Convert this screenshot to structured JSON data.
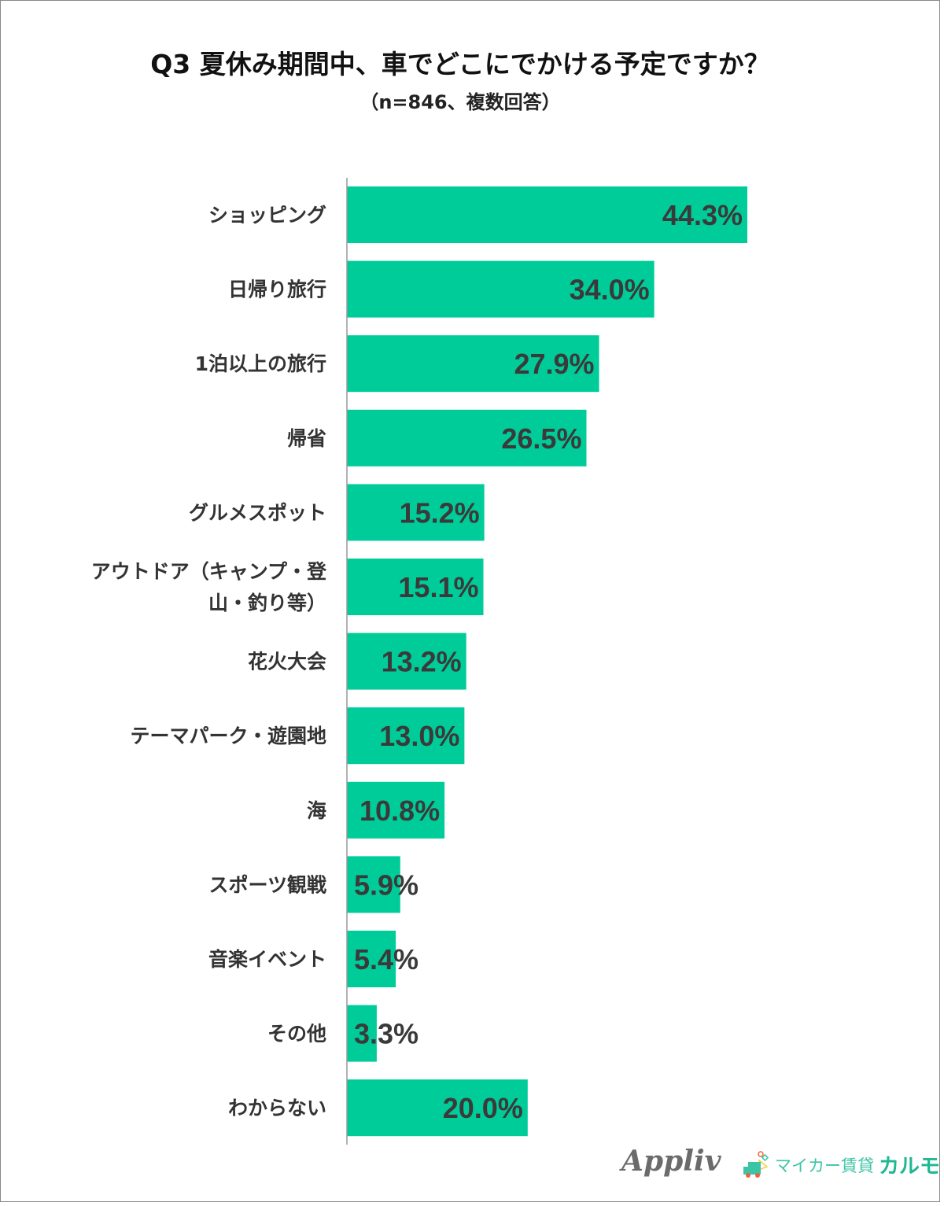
{
  "title": "Q3 夏休み期間中、車でどこにでかける予定ですか？",
  "subtitle": "（n=846、複数回答）",
  "chart_data": {
    "type": "bar",
    "orientation": "horizontal",
    "categories": [
      "ショッピング",
      "日帰り旅行",
      "1泊以上の旅行",
      "帰省",
      "グルメスポット",
      "アウトドア（キャンプ・登山・釣り等）",
      "花火大会",
      "テーマパーク・遊園地",
      "海",
      "スポーツ観戦",
      "音楽イベント",
      "その他",
      "わからない"
    ],
    "category_lines": [
      [
        "ショッピング"
      ],
      [
        "日帰り旅行"
      ],
      [
        "1泊以上の旅行"
      ],
      [
        "帰省"
      ],
      [
        "グルメスポット"
      ],
      [
        "アウトドア（キャンプ・登",
        "山・釣り等）"
      ],
      [
        "花火大会"
      ],
      [
        "テーマパーク・遊園地"
      ],
      [
        "海"
      ],
      [
        "スポーツ観戦"
      ],
      [
        "音楽イベント"
      ],
      [
        "その他"
      ],
      [
        "わからない"
      ]
    ],
    "values": [
      44.3,
      34.0,
      27.9,
      26.5,
      15.2,
      15.1,
      13.2,
      13.0,
      10.8,
      5.9,
      5.4,
      3.3,
      20.0
    ],
    "value_labels": [
      "44.3%",
      "34.0%",
      "27.9%",
      "26.5%",
      "15.2%",
      "15.1%",
      "13.2%",
      "13.0%",
      "10.8%",
      "5.9%",
      "5.4%",
      "3.3%",
      "20.0%"
    ],
    "unit": "%",
    "bar_color": "#00CC99",
    "grid": false
  },
  "logos": {
    "appliv": "Appliv",
    "karumo_prefix": "マイカー賃貸",
    "karumo_name": "カルモ"
  }
}
